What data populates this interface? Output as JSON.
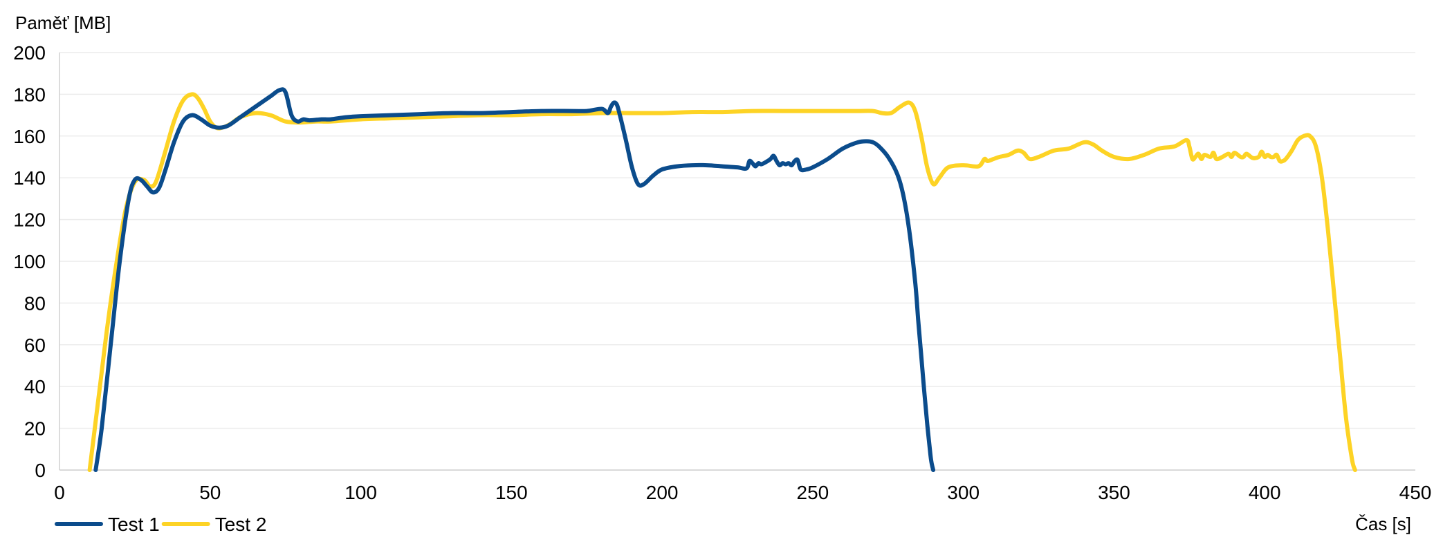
{
  "chart_data": {
    "type": "line",
    "title": "",
    "xlabel": "Čas [s]",
    "ylabel": "Paměť [MB]",
    "xlim": [
      0,
      450
    ],
    "ylim": [
      0,
      200
    ],
    "x_ticks": [
      0,
      50,
      100,
      150,
      200,
      250,
      300,
      350,
      400,
      450
    ],
    "y_ticks": [
      0,
      20,
      40,
      60,
      80,
      100,
      120,
      140,
      160,
      180,
      200
    ],
    "grid": true,
    "legend_position": "bottom-left",
    "series": [
      {
        "name": "Test 1",
        "color": "#0b4c8c",
        "x": [
          12,
          14,
          17,
          20,
          23,
          25,
          27,
          29,
          31,
          33,
          35,
          38,
          41,
          44,
          47,
          50,
          53,
          56,
          60,
          65,
          70,
          73,
          75,
          77,
          79,
          81,
          83,
          87,
          90,
          95,
          100,
          110,
          120,
          130,
          140,
          150,
          160,
          170,
          175,
          180,
          182,
          183,
          184,
          185,
          186,
          188,
          190,
          192,
          194,
          197,
          200,
          205,
          210,
          215,
          220,
          225,
          228,
          229,
          230,
          231,
          232,
          233,
          235,
          236,
          237,
          238,
          239,
          240,
          241,
          242,
          243,
          244,
          245,
          246,
          248,
          250,
          255,
          260,
          265,
          268,
          270,
          272,
          275,
          278,
          280,
          282,
          284,
          285,
          286,
          287,
          288,
          289,
          289.5,
          290
        ],
        "values": [
          0,
          20,
          60,
          100,
          130,
          139,
          139,
          136,
          133,
          135,
          143,
          157,
          167,
          170,
          168,
          165,
          164,
          165,
          169,
          174,
          179,
          182,
          181,
          170,
          167,
          168,
          167.5,
          168,
          168,
          169,
          169.5,
          170,
          170.5,
          171,
          171,
          171.5,
          172,
          172,
          172,
          173,
          171,
          174,
          176,
          175,
          170,
          158,
          145,
          137,
          137,
          141,
          144,
          145.5,
          146,
          146,
          145.5,
          145,
          144.5,
          148,
          147,
          145.5,
          147,
          146.5,
          148,
          149,
          150.5,
          148,
          146,
          147,
          146.5,
          147,
          146,
          148,
          148.5,
          144,
          144,
          145,
          149,
          154,
          157,
          157.5,
          157,
          155,
          150,
          142,
          132,
          115,
          90,
          72,
          55,
          38,
          22,
          8,
          3,
          0
        ]
      },
      {
        "name": "Test 2",
        "color": "#fdd325",
        "x": [
          10,
          13,
          16,
          19,
          22,
          25,
          28,
          30,
          32,
          35,
          38,
          41,
          44,
          46,
          48,
          50,
          52,
          54,
          57,
          60,
          65,
          70,
          75,
          80,
          85,
          90,
          100,
          110,
          120,
          130,
          140,
          150,
          160,
          170,
          180,
          190,
          200,
          210,
          220,
          230,
          240,
          250,
          260,
          265,
          270,
          273,
          276,
          279,
          282,
          284,
          286,
          288,
          290,
          292,
          295,
          300,
          305,
          307,
          308,
          310,
          312,
          315,
          318,
          320,
          322,
          325,
          330,
          335,
          340,
          343,
          346,
          350,
          355,
          360,
          365,
          370,
          374,
          375,
          376,
          377,
          378,
          379,
          380,
          382,
          383,
          384,
          386,
          388,
          389,
          390,
          392,
          393,
          394,
          396,
          398,
          399,
          400,
          401,
          402,
          403,
          404,
          405,
          406,
          407,
          409,
          411,
          413,
          415,
          417,
          419,
          421,
          423,
          425,
          427,
          429,
          430
        ],
        "values": [
          0,
          35,
          70,
          100,
          125,
          138,
          139,
          136,
          138,
          152,
          167,
          177,
          180,
          178,
          173,
          167,
          164,
          164,
          166,
          169,
          171,
          170,
          167,
          166.5,
          167,
          167,
          168,
          168.5,
          169,
          169.5,
          170,
          170,
          170.5,
          170.5,
          171,
          171,
          171,
          171.5,
          171.5,
          172,
          172,
          172,
          172,
          172,
          172,
          171,
          171,
          174,
          176,
          172,
          160,
          145,
          137,
          140,
          145,
          146,
          145.5,
          149,
          148,
          149,
          150,
          151,
          153,
          152,
          149,
          150,
          153,
          154,
          157,
          156,
          153,
          150,
          149,
          151,
          154,
          155,
          158,
          155,
          149,
          150,
          151.5,
          149,
          151,
          150,
          152,
          149,
          150,
          151.5,
          150,
          152,
          150,
          150,
          151.5,
          149.5,
          150,
          152.5,
          150,
          151,
          150,
          150,
          151,
          148,
          148,
          149,
          153,
          158,
          160,
          160,
          155,
          140,
          115,
          85,
          55,
          25,
          5,
          0
        ]
      }
    ]
  }
}
